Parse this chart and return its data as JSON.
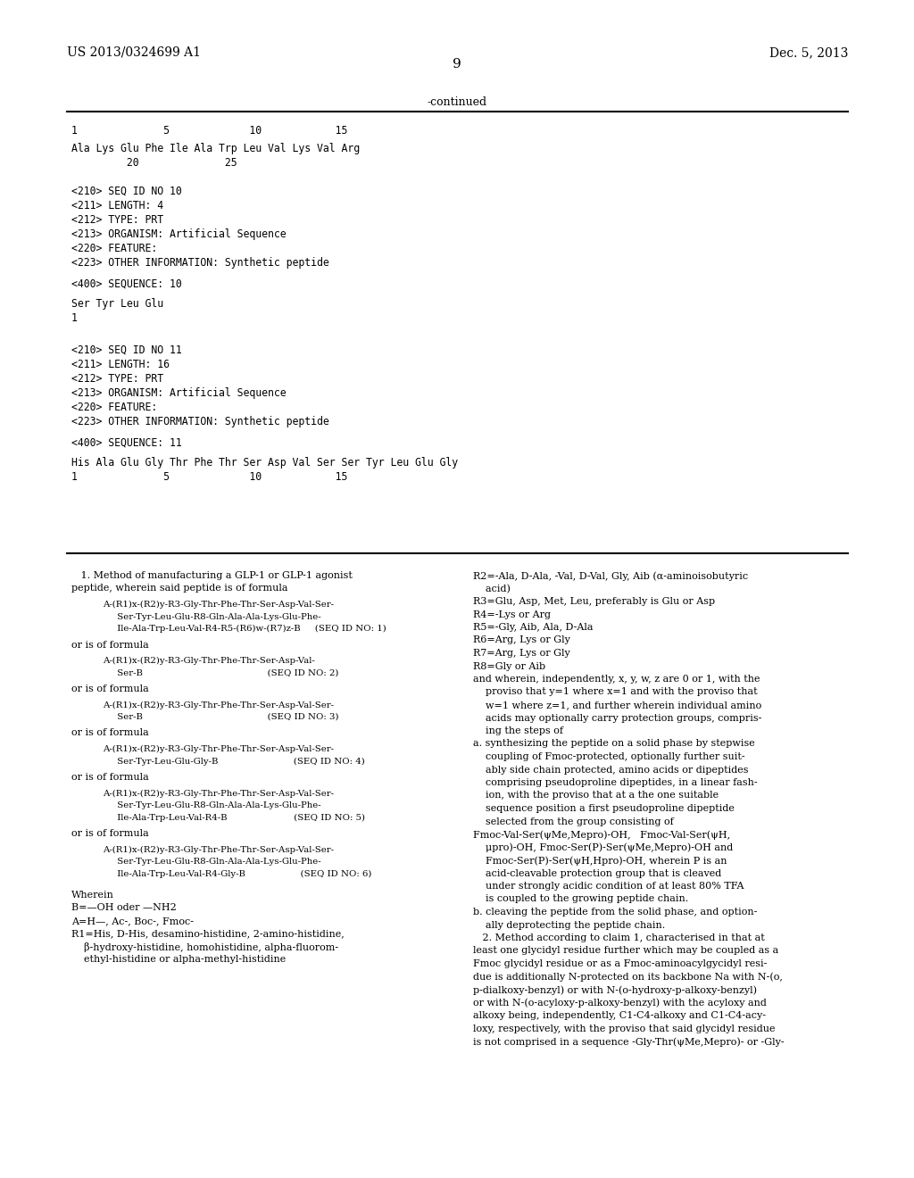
{
  "bg_color": "#ffffff",
  "header_left": "US 2013/0324699 A1",
  "header_right": "Dec. 5, 2013",
  "page_number": "9",
  "continued_label": "-continued",
  "seq_ruler": "1              5             10            15",
  "seq_line1": "Ala Lys Glu Phe Ile Ala Trp Leu Val Lys Val Arg",
  "seq_line2": "         20              25",
  "seq_entries_10": [
    "<210> SEQ ID NO 10",
    "<211> LENGTH: 4",
    "<212> TYPE: PRT",
    "<213> ORGANISM: Artificial Sequence",
    "<220> FEATURE:",
    "<223> OTHER INFORMATION: Synthetic peptide"
  ],
  "seq_label_10": "<400> SEQUENCE: 10",
  "seq_data_10": "Ser Tyr Leu Glu",
  "seq_num_10": "1",
  "seq_entries_11": [
    "<210> SEQ ID NO 11",
    "<211> LENGTH: 16",
    "<212> TYPE: PRT",
    "<213> ORGANISM: Artificial Sequence",
    "<220> FEATURE:",
    "<223> OTHER INFORMATION: Synthetic peptide"
  ],
  "seq_label_11": "<400> SEQUENCE: 11",
  "seq_data_11": "His Ala Glu Gly Thr Phe Thr Ser Asp Val Ser Ser Tyr Leu Glu Gly",
  "seq_num_11": "1              5             10            15",
  "claim1_header1": "   1. Method of manufacturing a GLP-1 or GLP-1 agonist",
  "claim1_header2": "peptide, wherein said peptide is of formula",
  "formulas_left": [
    [
      "A-(R1)x-(R2)y-R3-Gly-Thr-Phe-Thr-Ser-Asp-Val-Ser-",
      "     Ser-Tyr-Leu-Glu-R8-Gln-Ala-Ala-Lys-Glu-Phe-",
      "     Ile-Ala-Trp-Leu-Val-R4-R5-(R6)w-(R7)z-B     (SEQ ID NO: 1)"
    ],
    [
      "A-(R1)x-(R2)y-R3-Gly-Thr-Phe-Thr-Ser-Asp-Val-",
      "     Ser-B                                           (SEQ ID NO: 2)"
    ],
    [
      "A-(R1)x-(R2)y-R3-Gly-Thr-Phe-Thr-Ser-Asp-Val-Ser-",
      "     Ser-B                                           (SEQ ID NO: 3)"
    ],
    [
      "A-(R1)x-(R2)y-R3-Gly-Thr-Phe-Thr-Ser-Asp-Val-Ser-",
      "     Ser-Tyr-Leu-Glu-Gly-B                          (SEQ ID NO: 4)"
    ],
    [
      "A-(R1)x-(R2)y-R3-Gly-Thr-Phe-Thr-Ser-Asp-Val-Ser-",
      "     Ser-Tyr-Leu-Glu-R8-Gln-Ala-Ala-Lys-Glu-Phe-",
      "     Ile-Ala-Trp-Leu-Val-R4-B                       (SEQ ID NO: 5)"
    ],
    [
      "A-(R1)x-(R2)y-R3-Gly-Thr-Phe-Thr-Ser-Asp-Val-Ser-",
      "     Ser-Tyr-Leu-Glu-R8-Gln-Ala-Ala-Lys-Glu-Phe-",
      "     Ile-Ala-Trp-Leu-Val-R4-Gly-B                   (SEQ ID NO: 6)"
    ]
  ],
  "wherein_lines": [
    "Wherein",
    "B=—OH oder —NH2",
    "A=H—, Ac-, Boc-, Fmoc-",
    "R1=His, D-His, desamino-histidine, 2-amino-histidine,",
    "    β-hydroxy-histidine, homohistidine, alpha-fluorom-",
    "    ethyl-histidine or alpha-methyl-histidine"
  ],
  "right_column": [
    "R2=-Ala, D-Ala, -Val, D-Val, Gly, Aib (α-aminoisobutyric",
    "    acid)",
    "R3=Glu, Asp, Met, Leu, preferably is Glu or Asp",
    "R4=-Lys or Arg",
    "R5=-Gly, Aib, Ala, D-Ala",
    "R6=Arg, Lys or Gly",
    "R7=Arg, Lys or Gly",
    "R8=Gly or Aib",
    "and wherein, independently, x, y, w, z are 0 or 1, with the",
    "    proviso that y=1 where x=1 and with the proviso that",
    "    w=1 where z=1, and further wherein individual amino",
    "    acids may optionally carry protection groups, compris-",
    "    ing the steps of",
    "a. synthesizing the peptide on a solid phase by stepwise",
    "    coupling of Fmoc-protected, optionally further suit-",
    "    ably side chain protected, amino acids or dipeptides",
    "    comprising pseudoproline dipeptides, in a linear fash-",
    "    ion, with the proviso that at a the one suitable",
    "    sequence position a first pseudoproline dipeptide",
    "    selected from the group consisting of",
    "Fmoc-Val-Ser(ψMe,Mepro)-OH,   Fmoc-Val-Ser(ψH,",
    "    μpro)-OH, Fmoc-Ser(P)-Ser(ψMe,Mepro)-OH and",
    "    Fmoc-Ser(P)-Ser(ψH,Hpro)-OH, wherein P is an",
    "    acid-cleavable protection group that is cleaved",
    "    under strongly acidic condition of at least 80% TFA",
    "    is coupled to the growing peptide chain.",
    "b. cleaving the peptide from the solid phase, and option-",
    "    ally deprotecting the peptide chain.",
    "   2. Method according to claim 1, characterised in that at",
    "least one glycidyl residue further which may be coupled as a",
    "Fmoc glycidyl residue or as a Fmoc-aminoacylgycidyl resi-",
    "due is additionally N-protected on its backbone Na with N-(o,",
    "p-dialkoxy-benzyl) or with N-(o-hydroxy-p-alkoxy-benzyl)",
    "or with N-(o-acyloxy-p-alkoxy-benzyl) with the acyloxy and",
    "alkoxy being, independently, C1-C4-alkoxy and C1-C4-acy-",
    "loxy, respectively, with the proviso that said glycidyl residue",
    "is not comprised in a sequence -Gly-Thr(ψMe,Mepro)- or -Gly-"
  ]
}
